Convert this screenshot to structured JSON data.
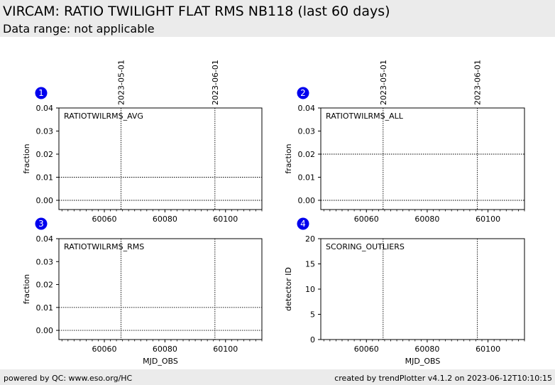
{
  "header": {
    "title": "VIRCAM: RATIO TWILIGHT FLAT RMS NB118 (last 60 days)",
    "subtitle": "Data range: not applicable"
  },
  "footer": {
    "left": "powered by QC: www.eso.org/HC",
    "right": "created by trendPlotter v4.1.2 on 2023-06-12T10:10:15"
  },
  "colors": {
    "badge": "#0000ee",
    "header_bg": "#ebebeb"
  },
  "chart_data": [
    {
      "panel": "1",
      "type": "scatter",
      "label": "RATIOTWILRMS_AVG",
      "xlabel": "",
      "ylabel": "fraction",
      "xlim": [
        60045,
        60112
      ],
      "ylim": [
        -0.004,
        0.04
      ],
      "yticks": [
        0.0,
        0.01,
        0.02,
        0.03,
        0.04
      ],
      "ytick_labels": [
        "0.00",
        "0.01",
        "0.02",
        "0.03",
        "0.04"
      ],
      "xticks": [
        60060,
        60080,
        60100
      ],
      "xtick_labels": [
        "60060",
        "60080",
        "60100"
      ],
      "hlines": [
        0.0,
        0.01
      ],
      "date_markers": [
        {
          "x": 60065.5,
          "label": "2023-05-01"
        },
        {
          "x": 60096.5,
          "label": "2023-06-01"
        }
      ],
      "points": []
    },
    {
      "panel": "2",
      "type": "scatter",
      "label": "RATIOTWILRMS_ALL",
      "xlabel": "",
      "ylabel": "fraction",
      "xlim": [
        60045,
        60112
      ],
      "ylim": [
        -0.004,
        0.04
      ],
      "yticks": [
        0.0,
        0.01,
        0.02,
        0.03,
        0.04
      ],
      "ytick_labels": [
        "0.00",
        "0.01",
        "0.02",
        "0.03",
        "0.04"
      ],
      "xticks": [
        60060,
        60080,
        60100
      ],
      "xtick_labels": [
        "60060",
        "60080",
        "60100"
      ],
      "hlines": [
        0.0,
        0.02
      ],
      "date_markers": [
        {
          "x": 60065.5,
          "label": "2023-05-01"
        },
        {
          "x": 60096.5,
          "label": "2023-06-01"
        }
      ],
      "points": []
    },
    {
      "panel": "3",
      "type": "scatter",
      "label": "RATIOTWILRMS_RMS",
      "xlabel": "MJD_OBS",
      "ylabel": "fraction",
      "xlim": [
        60045,
        60112
      ],
      "ylim": [
        -0.004,
        0.04
      ],
      "yticks": [
        0.0,
        0.01,
        0.02,
        0.03,
        0.04
      ],
      "ytick_labels": [
        "0.00",
        "0.01",
        "0.02",
        "0.03",
        "0.04"
      ],
      "xticks": [
        60060,
        60080,
        60100
      ],
      "xtick_labels": [
        "60060",
        "60080",
        "60100"
      ],
      "hlines": [
        0.0,
        0.01
      ],
      "date_markers": [
        {
          "x": 60065.5,
          "label": ""
        },
        {
          "x": 60096.5,
          "label": ""
        }
      ],
      "points": []
    },
    {
      "panel": "4",
      "type": "scatter",
      "label": "SCORING_OUTLIERS",
      "xlabel": "MJD_OBS",
      "ylabel": "detector ID",
      "xlim": [
        60045,
        60112
      ],
      "ylim": [
        0,
        20
      ],
      "yticks": [
        0,
        5,
        10,
        15,
        20
      ],
      "ytick_labels": [
        "0",
        "5",
        "10",
        "15",
        "20"
      ],
      "xticks": [
        60060,
        60080,
        60100
      ],
      "xtick_labels": [
        "60060",
        "60080",
        "60100"
      ],
      "hlines": [],
      "date_markers": [
        {
          "x": 60065.5,
          "label": ""
        },
        {
          "x": 60096.5,
          "label": ""
        }
      ],
      "points": []
    }
  ]
}
